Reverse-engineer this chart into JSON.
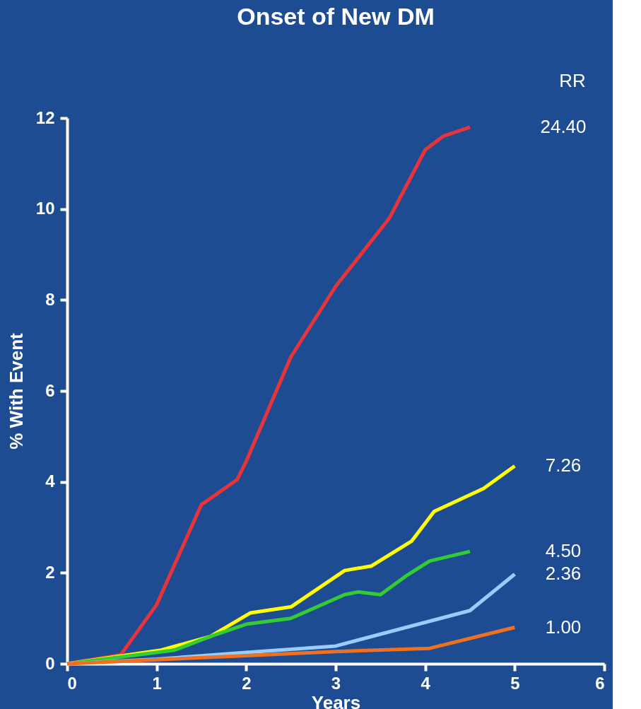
{
  "chart_data": {
    "type": "line",
    "title": "Onset of New DM",
    "xlabel": "Years",
    "ylabel": "% With Event",
    "legend_title": "RR",
    "series": [
      {
        "name": "24.40",
        "color": "#e8333a",
        "x": [
          0,
          0.6,
          1.0,
          1.5,
          1.9,
          2.0,
          2.5,
          3.0,
          3.6,
          4.0,
          4.2,
          4.5
        ],
        "values": [
          0,
          0.2,
          1.3,
          3.5,
          4.05,
          4.45,
          6.75,
          8.3,
          9.8,
          11.3,
          11.6,
          11.8
        ]
      },
      {
        "name": "7.26",
        "color": "#ffff00",
        "x": [
          0,
          1.05,
          1.6,
          2.05,
          2.5,
          3.1,
          3.4,
          3.85,
          4.1,
          4.65,
          5.0
        ],
        "values": [
          0,
          0.3,
          0.6,
          1.12,
          1.25,
          2.05,
          2.15,
          2.7,
          3.35,
          3.85,
          4.35
        ]
      },
      {
        "name": "4.50",
        "color": "#33cc33",
        "x": [
          0,
          1.2,
          1.6,
          2.0,
          2.5,
          3.1,
          3.25,
          3.5,
          3.8,
          4.05,
          4.5
        ],
        "values": [
          0,
          0.3,
          0.6,
          0.87,
          1.0,
          1.52,
          1.58,
          1.52,
          1.95,
          2.26,
          2.47
        ]
      },
      {
        "name": "2.36",
        "color": "#99ccff",
        "x": [
          0,
          1.0,
          2.0,
          3.0,
          4.5,
          5.0
        ],
        "values": [
          0,
          0.1,
          0.25,
          0.39,
          1.17,
          1.97
        ]
      },
      {
        "name": "1.00",
        "color": "#f07020",
        "x": [
          0,
          2.0,
          3.0,
          4.05,
          5.0
        ],
        "values": [
          0,
          0.18,
          0.27,
          0.34,
          0.8
        ]
      }
    ],
    "xlim": [
      0,
      6
    ],
    "xticks": [
      0,
      1,
      2,
      3,
      4,
      5,
      6
    ],
    "ylim": [
      0,
      12
    ],
    "yticks": [
      0,
      2,
      4,
      6,
      8,
      10,
      12
    ],
    "grid": false,
    "legend": "right",
    "marker": "none",
    "line_style": "solid"
  }
}
